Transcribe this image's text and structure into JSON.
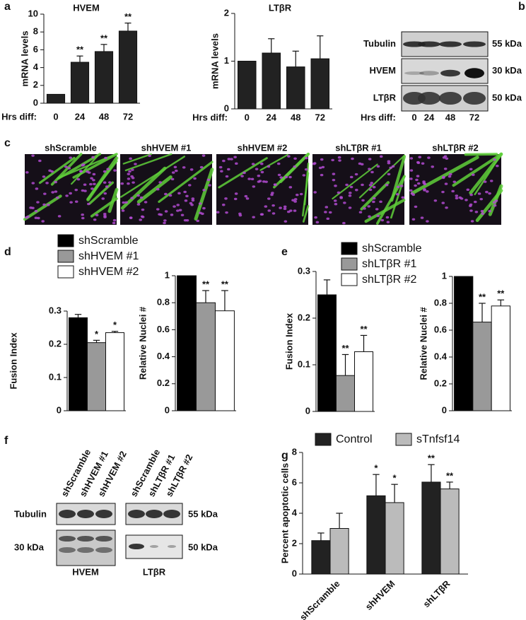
{
  "panel_labels": [
    "a",
    "b",
    "c",
    "d",
    "e",
    "f",
    "g"
  ],
  "chart_data": [
    {
      "type": "bar",
      "title": "HVEM",
      "ylabel": "mRNA levels",
      "xlabel": "Hrs diff:",
      "categories": [
        "0",
        "24",
        "48",
        "72"
      ],
      "series": [
        {
          "color": "#222222",
          "values": [
            1,
            4.6,
            5.8,
            8.1
          ],
          "errors": [
            null,
            0.7,
            0.8,
            0.9
          ],
          "significance": [
            null,
            "**",
            "**",
            "**"
          ]
        }
      ],
      "ylim": [
        0,
        10
      ],
      "yticks": [
        0,
        2,
        4,
        6,
        8,
        10
      ]
    },
    {
      "type": "bar",
      "title": "LTβR",
      "ylabel": "mRNA levels",
      "xlabel": "Hrs diff:",
      "categories": [
        "0",
        "24",
        "48",
        "72"
      ],
      "series": [
        {
          "color": "#222222",
          "values": [
            1,
            1.17,
            0.88,
            1.05
          ],
          "errors": [
            null,
            0.3,
            0.33,
            0.48
          ]
        }
      ],
      "ylim": [
        0,
        2
      ],
      "yticks": [
        0,
        1,
        2
      ]
    },
    {
      "type": "bar",
      "ylabel": "Fusion Index",
      "series": [
        {
          "name": "shScramble",
          "color": "#000000",
          "values": [
            0.28
          ],
          "errors": [
            0.01
          ]
        },
        {
          "name": "shHVEM #1",
          "color": "#999999",
          "values": [
            0.205
          ],
          "errors": [
            0.007
          ],
          "significance": [
            "*"
          ]
        },
        {
          "name": "shHVEM #2",
          "color": "#ffffff",
          "values": [
            0.235
          ],
          "errors": [
            0.004
          ],
          "significance": [
            "*"
          ]
        }
      ],
      "ylim": [
        0,
        0.3
      ],
      "yticks": [
        0,
        0.1,
        0.2,
        0.3
      ]
    },
    {
      "type": "bar",
      "ylabel": "Relative Nuclei #",
      "series": [
        {
          "color": "#000000",
          "values": [
            1
          ]
        },
        {
          "color": "#999999",
          "values": [
            0.8
          ],
          "errors": [
            0.09
          ],
          "significance": [
            "**"
          ]
        },
        {
          "color": "#ffffff",
          "values": [
            0.74
          ],
          "errors": [
            0.15
          ],
          "significance": [
            "**"
          ]
        }
      ],
      "ylim": [
        0,
        1
      ],
      "yticks": [
        0,
        0.2,
        0.4,
        0.6,
        0.8,
        1
      ]
    },
    {
      "type": "bar",
      "ylabel": "Fusion Index",
      "series": [
        {
          "name": "shScramble",
          "color": "#000000",
          "values": [
            0.25
          ],
          "errors": [
            0.032
          ]
        },
        {
          "name": "shLTβR #1",
          "color": "#999999",
          "values": [
            0.077
          ],
          "errors": [
            0.045
          ],
          "significance": [
            "**"
          ]
        },
        {
          "name": "shLTβR #2",
          "color": "#ffffff",
          "values": [
            0.128
          ],
          "errors": [
            0.035
          ],
          "significance": [
            "**"
          ]
        }
      ],
      "ylim": [
        0,
        0.3
      ],
      "yticks": [
        0,
        0.1,
        0.2,
        0.3
      ]
    },
    {
      "type": "bar",
      "ylabel": "Relative Nuclei #",
      "series": [
        {
          "color": "#000000",
          "values": [
            1
          ]
        },
        {
          "color": "#999999",
          "values": [
            0.66
          ],
          "errors": [
            0.14
          ],
          "significance": [
            "**"
          ]
        },
        {
          "color": "#ffffff",
          "values": [
            0.78
          ],
          "errors": [
            0.045
          ],
          "significance": [
            "**"
          ]
        }
      ],
      "ylim": [
        0,
        1
      ],
      "yticks": [
        0,
        0.2,
        0.4,
        0.6,
        0.8,
        1
      ]
    },
    {
      "type": "bar",
      "ylabel": "Percent apoptotic cells",
      "categories": [
        "shScramble",
        "shHVEM",
        "shLTβR"
      ],
      "series": [
        {
          "name": "Control",
          "color": "#222222",
          "values": [
            2.2,
            5.15,
            6.05
          ],
          "errors": [
            0.5,
            1.4,
            1.15
          ],
          "significance": [
            null,
            "*",
            "**"
          ]
        },
        {
          "name": "sTnfsf14",
          "color": "#bbbbbb",
          "values": [
            3.0,
            4.7,
            5.6
          ],
          "errors": [
            1.0,
            1.2,
            0.45
          ],
          "significance": [
            null,
            "*",
            "**"
          ]
        }
      ],
      "ylim": [
        0,
        8
      ],
      "yticks": [
        0,
        2,
        4,
        6,
        8
      ]
    }
  ],
  "blot_b": {
    "rows": [
      {
        "label": "Tubulin",
        "size": "55 kDa"
      },
      {
        "label": "HVEM",
        "size": "30 kDa"
      },
      {
        "label": "LTβR",
        "size": "50 kDa"
      }
    ],
    "lane_title": "Hrs diff:",
    "lanes": [
      "0",
      "24",
      "48",
      "72"
    ]
  },
  "micrographs": [
    "shScramble",
    "shHVEM #1",
    "shHVEM #2",
    "shLTβR #1",
    "shLTβR #2"
  ],
  "blot_f": {
    "lanes": [
      "shScramble",
      "shHVEM #1",
      "shHVEM #2",
      "shScramble",
      "shLTβR #1",
      "shLTβR #2"
    ],
    "row_labels": [
      "Tubulin",
      "30 kDa"
    ],
    "sizes": [
      "55 kDa",
      "50 kDa"
    ],
    "groups": [
      "HVEM",
      "LTβR"
    ]
  }
}
